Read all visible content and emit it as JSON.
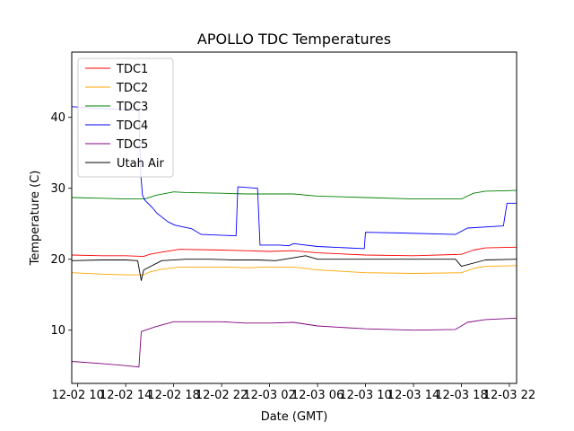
{
  "chart_data": {
    "type": "line",
    "title": "APOLLO TDC Temperatures",
    "xlabel": "Date (GMT)",
    "ylabel": "Temperature (C)",
    "x_unit": "hours since 12-02 10:00 GMT",
    "xlim": [
      -0.5,
      36.6
    ],
    "ylim": [
      2.5,
      49.2
    ],
    "grid": false,
    "legend_position": "top-left",
    "x_ticks": [
      {
        "value": 0,
        "label": "12-02 10"
      },
      {
        "value": 4,
        "label": "12-02 14"
      },
      {
        "value": 8,
        "label": "12-02 18"
      },
      {
        "value": 12,
        "label": "12-02 22"
      },
      {
        "value": 16,
        "label": "12-03 02"
      },
      {
        "value": 20,
        "label": "12-03 06"
      },
      {
        "value": 24,
        "label": "12-03 10"
      },
      {
        "value": 28,
        "label": "12-03 14"
      },
      {
        "value": 32,
        "label": "12-03 18"
      },
      {
        "value": 36,
        "label": "12-03 22"
      }
    ],
    "y_ticks": [
      {
        "value": 10,
        "label": "10"
      },
      {
        "value": 20,
        "label": "20"
      },
      {
        "value": 30,
        "label": "30"
      },
      {
        "value": 40,
        "label": "40"
      }
    ],
    "series": [
      {
        "name": "TDC1",
        "color": "#ff0000",
        "x": [
          -0.5,
          2,
          4,
          5.5,
          6,
          7,
          8.5,
          12,
          14,
          16,
          18,
          20,
          24,
          28,
          32,
          33,
          34,
          36.6
        ],
        "y": [
          20.6,
          20.5,
          20.5,
          20.4,
          20.7,
          21.0,
          21.4,
          21.3,
          21.2,
          21.1,
          21.2,
          20.9,
          20.6,
          20.5,
          20.7,
          21.3,
          21.6,
          21.7
        ]
      },
      {
        "name": "TDC2",
        "color": "#ffa500",
        "x": [
          -0.5,
          2,
          4,
          5.5,
          6,
          7,
          8.5,
          12,
          14,
          16,
          18,
          20,
          24,
          28,
          32,
          33,
          34,
          36.6
        ],
        "y": [
          18.1,
          17.9,
          17.8,
          17.8,
          18.2,
          18.6,
          18.9,
          18.9,
          18.8,
          18.9,
          18.9,
          18.5,
          18.1,
          18.0,
          18.1,
          18.7,
          19.0,
          19.1
        ]
      },
      {
        "name": "TDC3",
        "color": "#008000",
        "x": [
          -0.5,
          2,
          4,
          5.6,
          6.5,
          8,
          9,
          12,
          14,
          16,
          18,
          20,
          24,
          28,
          32,
          33,
          34,
          36.6
        ],
        "y": [
          28.7,
          28.6,
          28.5,
          28.5,
          29.0,
          29.5,
          29.4,
          29.3,
          29.2,
          29.2,
          29.2,
          28.9,
          28.7,
          28.5,
          28.5,
          29.3,
          29.6,
          29.7
        ]
      },
      {
        "name": "TDC4",
        "color": "#0000ff",
        "x": [
          -0.5,
          1.5,
          5.1,
          5.25,
          5.4,
          5.6,
          6.2,
          6.6,
          7.5,
          8.1,
          9.5,
          10.3,
          13.2,
          13.35,
          15.0,
          15.2,
          16.8,
          17.6,
          18.0,
          20.0,
          23.9,
          24.0,
          27.0,
          31.5,
          32.5,
          35.5,
          35.8,
          36.6
        ],
        "y": [
          41.5,
          41.3,
          41.0,
          32.0,
          29.0,
          28.3,
          27.3,
          26.5,
          25.3,
          24.8,
          24.3,
          23.5,
          23.3,
          30.2,
          30.0,
          22.0,
          22.0,
          21.9,
          22.2,
          21.8,
          21.5,
          23.8,
          23.7,
          23.5,
          24.4,
          24.7,
          27.9,
          27.9
        ]
      },
      {
        "name": "TDC5",
        "color": "#800080",
        "x": [
          -0.5,
          2,
          4,
          5.1,
          5.3,
          6.5,
          8,
          12,
          14,
          16,
          18,
          20,
          24,
          28,
          31.5,
          32.5,
          34,
          36.6
        ],
        "y": [
          5.6,
          5.3,
          5.0,
          4.8,
          9.8,
          10.5,
          11.2,
          11.2,
          11.0,
          11.0,
          11.1,
          10.6,
          10.2,
          10.0,
          10.1,
          11.1,
          11.5,
          11.7
        ]
      },
      {
        "name": "Utah Air",
        "color": "#000000",
        "x": [
          -0.5,
          2,
          4,
          5.0,
          5.3,
          5.5,
          7,
          9,
          11,
          13,
          15,
          16.5,
          18,
          19,
          20,
          22,
          24,
          28,
          31.5,
          32,
          34,
          36.6
        ],
        "y": [
          19.8,
          19.9,
          19.9,
          19.8,
          17.0,
          18.5,
          19.8,
          20.0,
          20.0,
          19.9,
          19.9,
          19.8,
          20.2,
          20.5,
          20.0,
          20.0,
          20.0,
          20.0,
          20.0,
          19.0,
          19.9,
          20.0
        ]
      }
    ]
  }
}
